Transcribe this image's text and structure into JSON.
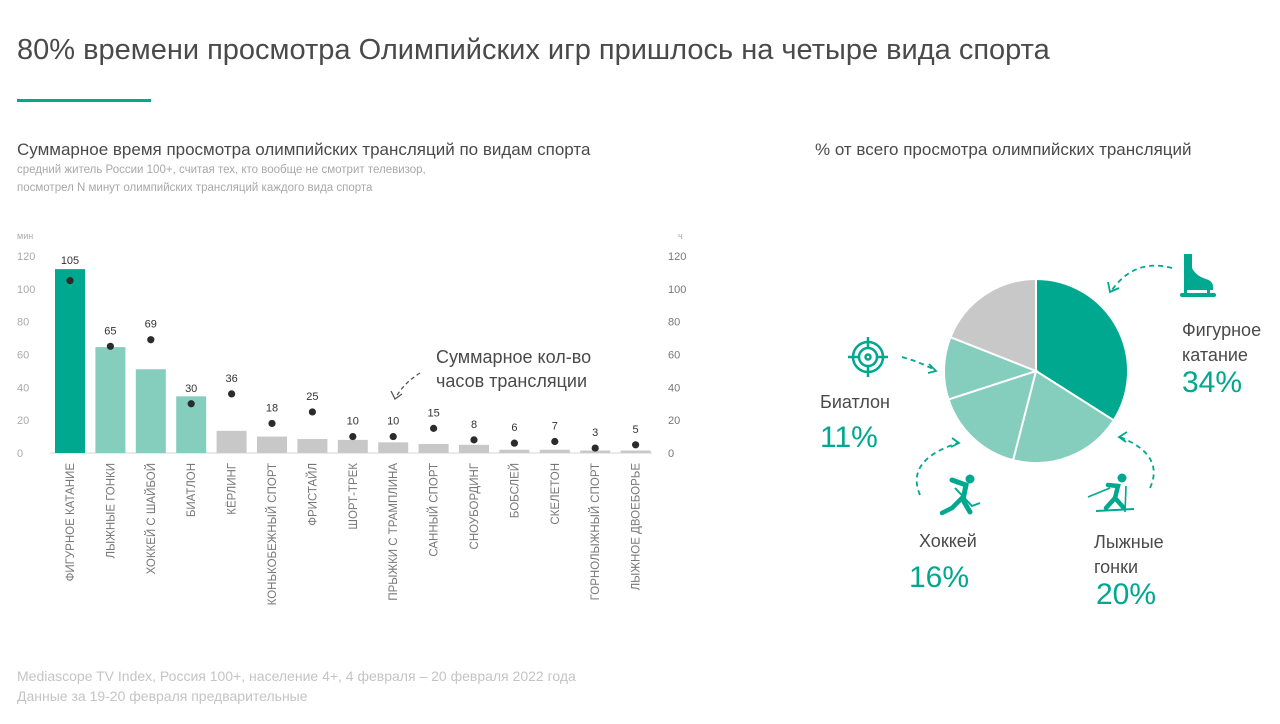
{
  "title": "80% времени просмотра Олимпийских игр пришлось на четыре вида спорта",
  "colors": {
    "accent": "#00a88f",
    "light": "#85cdbd",
    "gray": "#c8c8c8",
    "dot": "#2b2b2b"
  },
  "chart_data": [
    {
      "type": "bar",
      "title": "Суммарное время просмотра олимпийских трансляций по видам спорта",
      "subtitle_lines": [
        "средний житель России 100+, считая тех, кто вообще не смотрит телевизор,",
        "посмотрел N минут олимпийских трансляций каждого вида спорта"
      ],
      "ylabel": "мин",
      "y2label": "ч",
      "ylim": [
        0,
        120
      ],
      "y2lim": [
        0,
        120
      ],
      "yticks": [
        0,
        20,
        40,
        60,
        80,
        100,
        120
      ],
      "y2ticks": [
        0,
        20,
        40,
        60,
        80,
        100,
        120
      ],
      "annotation": [
        "Суммарное кол-во",
        "часов трансляции"
      ],
      "categories": [
        "ФИГУРНОЕ КАТАНИЕ",
        "ЛЫЖНЫЕ ГОНКИ",
        "ХОККЕЙ С ШАЙБОЙ",
        "БИАТЛОН",
        "КЁРЛИНГ",
        "КОНЬКОБЕЖНЫЙ СПОРТ",
        "ФРИСТАЙЛ",
        "ШОРТ-ТРЕК",
        "ПРЫЖКИ С ТРАМПЛИНА",
        "САННЫЙ СПОРТ",
        "СНОУБОРДИНГ",
        "БОБСЛЕЙ",
        "СКЕЛЕТОН",
        "ГОРНОЛЫЖНЫЙ СПОРТ",
        "ЛЫЖНОЕ ДВОЕБОРЬЕ"
      ],
      "series": [
        {
          "name": "минуты просмотра",
          "axis": "left",
          "kind": "bar",
          "values": [
            112,
            64.5,
            51,
            34.5,
            13.5,
            10,
            8.5,
            8,
            6.5,
            5.5,
            5,
            2,
            2,
            1.5,
            1.5
          ],
          "color_groups": [
            "accent",
            "light",
            "light",
            "light",
            "gray",
            "gray",
            "gray",
            "gray",
            "gray",
            "gray",
            "gray",
            "gray",
            "gray",
            "gray",
            "gray"
          ]
        },
        {
          "name": "часы трансляции",
          "axis": "right",
          "kind": "dot",
          "values": [
            105,
            65,
            69,
            30,
            36,
            18,
            25,
            10,
            10,
            15,
            8,
            6,
            7,
            3,
            5
          ],
          "labels": [
            "105",
            "65",
            "69",
            "30",
            "36",
            "18",
            "25",
            "10",
            "10",
            "15",
            "8",
            "6",
            "7",
            "3",
            "5"
          ]
        }
      ]
    },
    {
      "type": "pie",
      "title": "% от всего просмотра олимпийских трансляций",
      "slices": [
        {
          "label_lines": [
            "Фигурное",
            "катание"
          ],
          "pct_label": "34%",
          "value": 34,
          "color": "accent",
          "icon": "figure-skate-icon"
        },
        {
          "label_lines": [
            "Лыжные",
            "гонки"
          ],
          "pct_label": "20%",
          "value": 20,
          "color": "light",
          "icon": "skier-icon"
        },
        {
          "label_lines": [
            "Хоккей"
          ],
          "pct_label": "16%",
          "value": 16,
          "color": "light",
          "icon": "hockey-player-icon"
        },
        {
          "label_lines": [
            "Биатлон"
          ],
          "pct_label": "11%",
          "value": 11,
          "color": "light",
          "icon": "target-icon"
        },
        {
          "label_lines": [],
          "pct_label": "",
          "value": 19,
          "color": "gray",
          "icon": ""
        }
      ]
    }
  ],
  "footer": [
    "Mediascope TV Index, Россия 100+, население 4+, 4 февраля – 20 февраля 2022 года",
    "Данные за 19-20 февраля предварительные"
  ]
}
